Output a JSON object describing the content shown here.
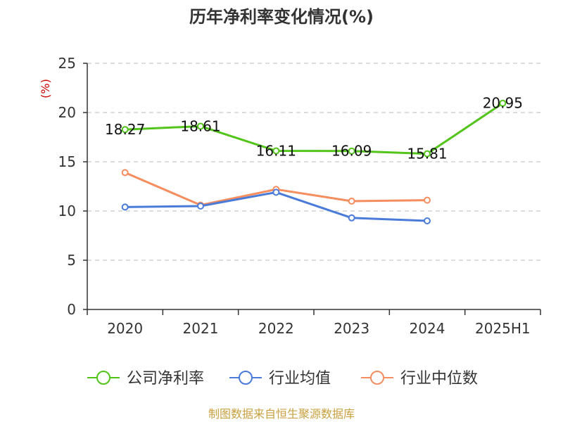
{
  "colors": {
    "company": "#52c41a",
    "industry_avg": "#4a7bd9",
    "industry_median": "#f58d5e",
    "unit": "#cc0000",
    "source": "#c8a040",
    "axis": "#333333",
    "grid": "#bbbbbb"
  },
  "legend": [
    {
      "key": "company",
      "label": "公司净利率"
    },
    {
      "key": "industry_avg",
      "label": "行业均值"
    },
    {
      "key": "industry_median",
      "label": "行业中位数"
    }
  ],
  "source": "制图数据来自恒生聚源数据库",
  "chart_data": {
    "type": "line",
    "title": "历年净利率变化情况(%)",
    "ylabel": "(%)",
    "xlabel": "",
    "categories": [
      "2020",
      "2021",
      "2022",
      "2023",
      "2024",
      "2025H1"
    ],
    "ylim": [
      0,
      25
    ],
    "yticks": [
      0,
      5,
      10,
      15,
      20,
      25
    ],
    "grid": true,
    "legend_position": "bottom",
    "series": [
      {
        "name": "公司净利率",
        "key": "company",
        "values": [
          18.27,
          18.61,
          16.11,
          16.09,
          15.81,
          20.95
        ],
        "labels": [
          "18.27",
          "18.61",
          "16.11",
          "16.09",
          "15.81",
          "20.95"
        ]
      },
      {
        "name": "行业均值",
        "key": "industry_avg",
        "values": [
          10.4,
          10.5,
          11.9,
          9.3,
          9.0,
          null
        ]
      },
      {
        "name": "行业中位数",
        "key": "industry_median",
        "values": [
          13.9,
          10.6,
          12.2,
          11.0,
          11.1,
          null
        ]
      }
    ]
  }
}
